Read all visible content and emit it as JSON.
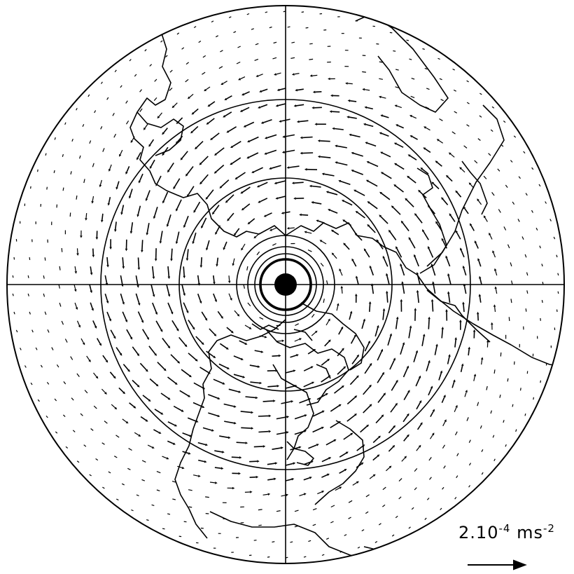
{
  "figure": {
    "projection": "polar-stereographic",
    "hemisphere": "north",
    "background_color": "#ffffff",
    "ink_color": "#000000",
    "features": [
      "coastlines",
      "latitude-circles",
      "meridian-cross",
      "acceleration-vectors",
      "pole-marker"
    ]
  },
  "scale": {
    "mantissa": "2",
    "separator": ".",
    "base": "10",
    "exponent": "-4",
    "unit": "ms",
    "unit_exponent": "-2",
    "arrow_icon": "right-arrow-icon"
  }
}
